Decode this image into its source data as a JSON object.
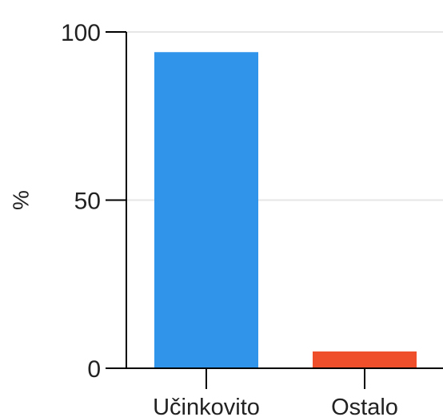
{
  "chart_data": {
    "type": "bar",
    "title": "",
    "xlabel": "",
    "ylabel": "%",
    "ylim": [
      0,
      100
    ],
    "yticks": [
      "0",
      "50",
      "100"
    ],
    "categories": [
      "Učinkovito",
      "Ostalo"
    ],
    "values": [
      94,
      5
    ],
    "colors": [
      "#2f94ea",
      "#f04f2b"
    ],
    "grid": true,
    "grid_color": "#e6e6e6",
    "axis_color": "#000000"
  }
}
